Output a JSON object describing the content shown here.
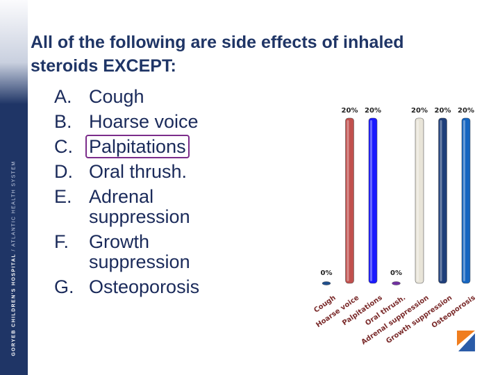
{
  "sidebar": {
    "text_a": "GORYEB CHILDREN'S HOSPITAL",
    "text_b": " / ATLANTIC HEALTH SYSTEM",
    "color": "#1f3566"
  },
  "question": {
    "title": "All of the following are side effects of inhaled steroids EXCEPT:"
  },
  "options": [
    {
      "letter": "A.",
      "text": "Cough"
    },
    {
      "letter": "B.",
      "text": "Hoarse voice"
    },
    {
      "letter": "C.",
      "text": "Palpitations",
      "highlighted": true
    },
    {
      "letter": "D.",
      "text": "Oral thrush."
    },
    {
      "letter": "E.",
      "text": "Adrenal suppression"
    },
    {
      "letter": "F.",
      "text": "Growth suppression"
    },
    {
      "letter": "G.",
      "text": "Osteoporosis"
    }
  ],
  "chart_data": {
    "type": "bar",
    "categories": [
      "Cough",
      "Hoarse voice",
      "Palpitations",
      "Oral thrush.",
      "Adrenal suppression",
      "Growth suppression",
      "Osteoporosis"
    ],
    "values": [
      0,
      20,
      20,
      0,
      20,
      20,
      20
    ],
    "value_labels": [
      "0%",
      "20%",
      "20%",
      "0%",
      "20%",
      "20%",
      "20%"
    ],
    "colors": [
      "#1f4e8c",
      "#c0504d",
      "#1a1aff",
      "#7030a0",
      "#e8e4d8",
      "#1f3f7a",
      "#1565c0"
    ],
    "ylim": [
      0,
      20
    ]
  },
  "logo": {
    "colors": [
      "#f07d1e",
      "#2b5ca8"
    ]
  }
}
